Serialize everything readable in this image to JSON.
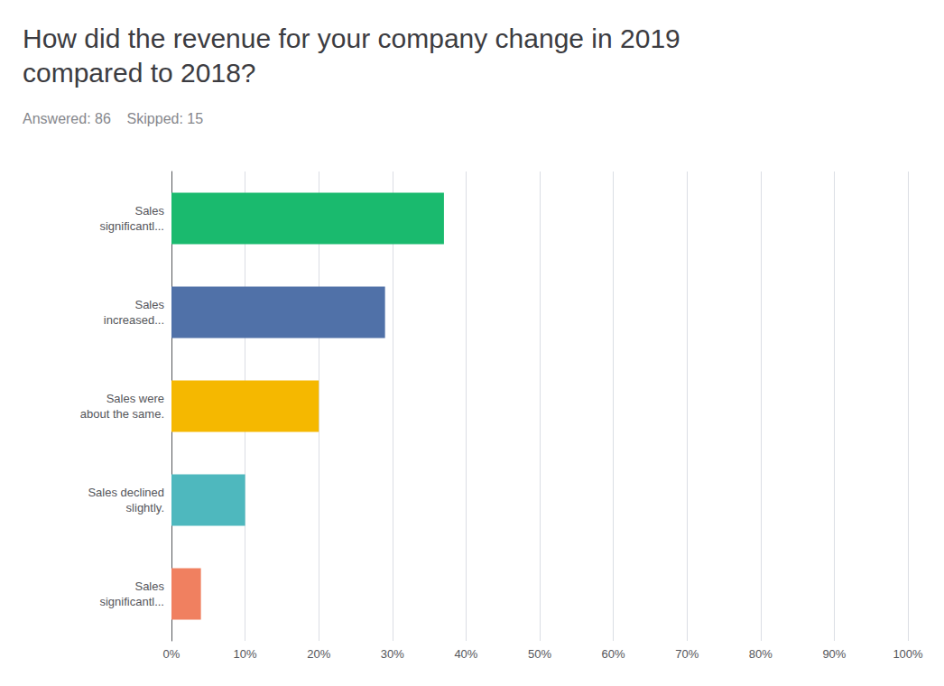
{
  "chart_data": {
    "type": "bar",
    "orientation": "horizontal",
    "title": "How did the revenue for your company change in 2019\ncompared to 2018?",
    "subtitle": "Answered: 86    Skipped: 15",
    "categories": [
      "Sales\nsignificantl...",
      "Sales\nincreased...",
      "Sales were\nabout the same.",
      "Sales declined\nslightly.",
      "Sales\nsignificantl..."
    ],
    "values": [
      37,
      29,
      20,
      10,
      4
    ],
    "colors": [
      "#1aba6e",
      "#5071a8",
      "#f5b800",
      "#4eb8be",
      "#f08060"
    ],
    "xlim": [
      0,
      100
    ],
    "xticks": [
      {
        "value": 0,
        "label": "0%"
      },
      {
        "value": 10,
        "label": "10%"
      },
      {
        "value": 20,
        "label": "20%"
      },
      {
        "value": 30,
        "label": "30%"
      },
      {
        "value": 40,
        "label": "40%"
      },
      {
        "value": 50,
        "label": "50%"
      },
      {
        "value": 60,
        "label": "60%"
      },
      {
        "value": 70,
        "label": "70%"
      },
      {
        "value": 80,
        "label": "80%"
      },
      {
        "value": 90,
        "label": "90%"
      },
      {
        "value": 100,
        "label": "100%"
      }
    ],
    "grid": true
  }
}
